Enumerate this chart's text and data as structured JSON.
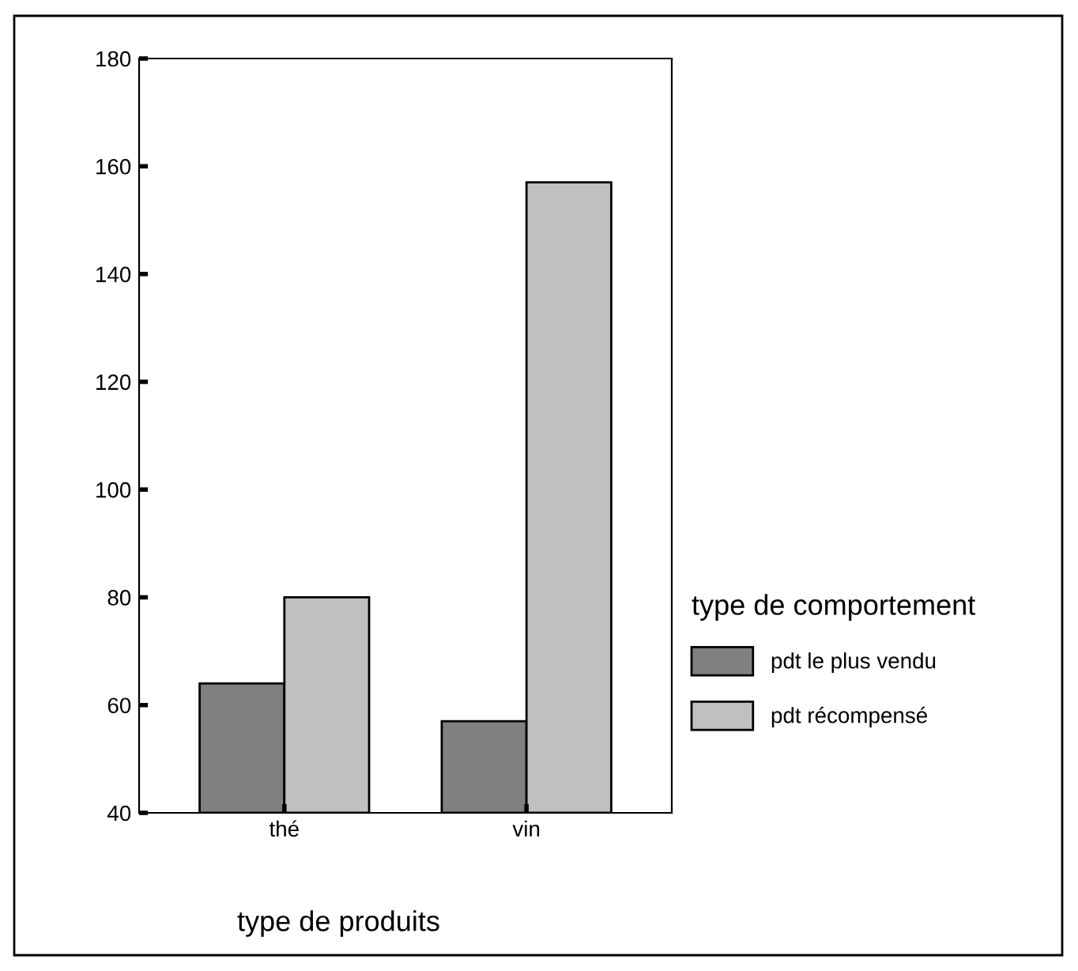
{
  "chart_data": {
    "type": "bar",
    "xlabel": "type de produits",
    "legend_title": "type de comportement",
    "categories": [
      "thé",
      "vin"
    ],
    "series": [
      {
        "name": "pdt le plus vendu",
        "color": "#808080",
        "values": [
          64,
          57
        ]
      },
      {
        "name": "pdt récompensé",
        "color": "#c0c0c0",
        "values": [
          80,
          157
        ]
      }
    ],
    "ylim": [
      40,
      180
    ],
    "yticks": [
      40,
      60,
      80,
      100,
      120,
      140,
      160,
      180
    ],
    "grid": false,
    "legend": "right"
  }
}
